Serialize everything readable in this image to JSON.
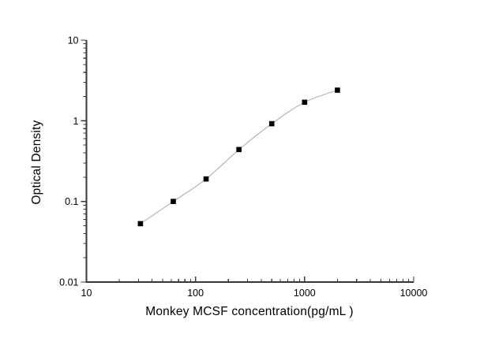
{
  "figure": {
    "background": "#ffffff"
  },
  "chart_data": {
    "type": "scatter",
    "title": "",
    "xlabel": "Monkey MCSF concentration(pg/mL )",
    "ylabel": "Optical Density",
    "x_scale": "log",
    "y_scale": "log",
    "xlim": [
      10,
      10000
    ],
    "ylim": [
      0.01,
      10
    ],
    "x_ticks": [
      {
        "value": 10,
        "label": "10"
      },
      {
        "value": 100,
        "label": "100"
      },
      {
        "value": 1000,
        "label": "1000"
      },
      {
        "value": 10000,
        "label": "10000"
      }
    ],
    "y_ticks": [
      {
        "value": 10,
        "label": "10"
      },
      {
        "value": 1,
        "label": "1"
      },
      {
        "value": 0.1,
        "label": "0.1"
      },
      {
        "value": 0.01,
        "label": "0.01"
      }
    ],
    "minor_ticks": true,
    "grid": false,
    "legend": null,
    "series": [
      {
        "x": [
          31.25,
          62.5,
          125,
          250,
          500,
          1000,
          2000
        ],
        "y": [
          0.053,
          0.1,
          0.19,
          0.44,
          0.92,
          1.7,
          2.4
        ],
        "marker": {
          "shape": "square",
          "color": "#000000",
          "size": 6.6
        },
        "line": {
          "color": "#a8a8a8",
          "width": 1,
          "style": "smooth"
        }
      }
    ],
    "axis_color": "#383838",
    "text_color": "#000000"
  }
}
